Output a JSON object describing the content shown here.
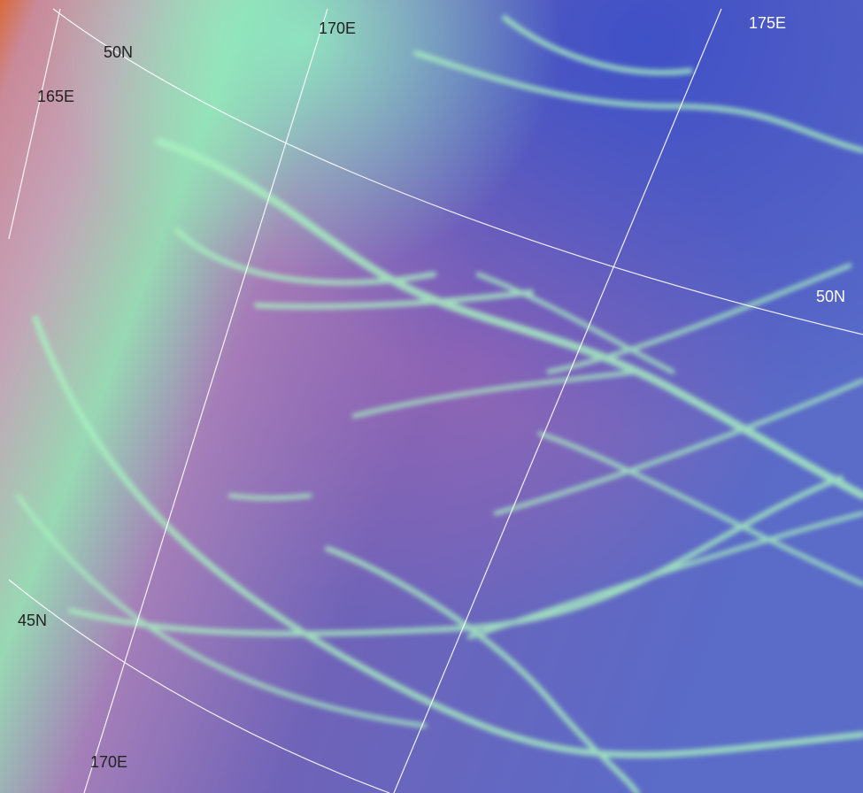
{
  "labels": [
    "170E",
    "175E",
    "50N",
    "165E",
    "50N",
    "45N",
    "170E"
  ]
}
